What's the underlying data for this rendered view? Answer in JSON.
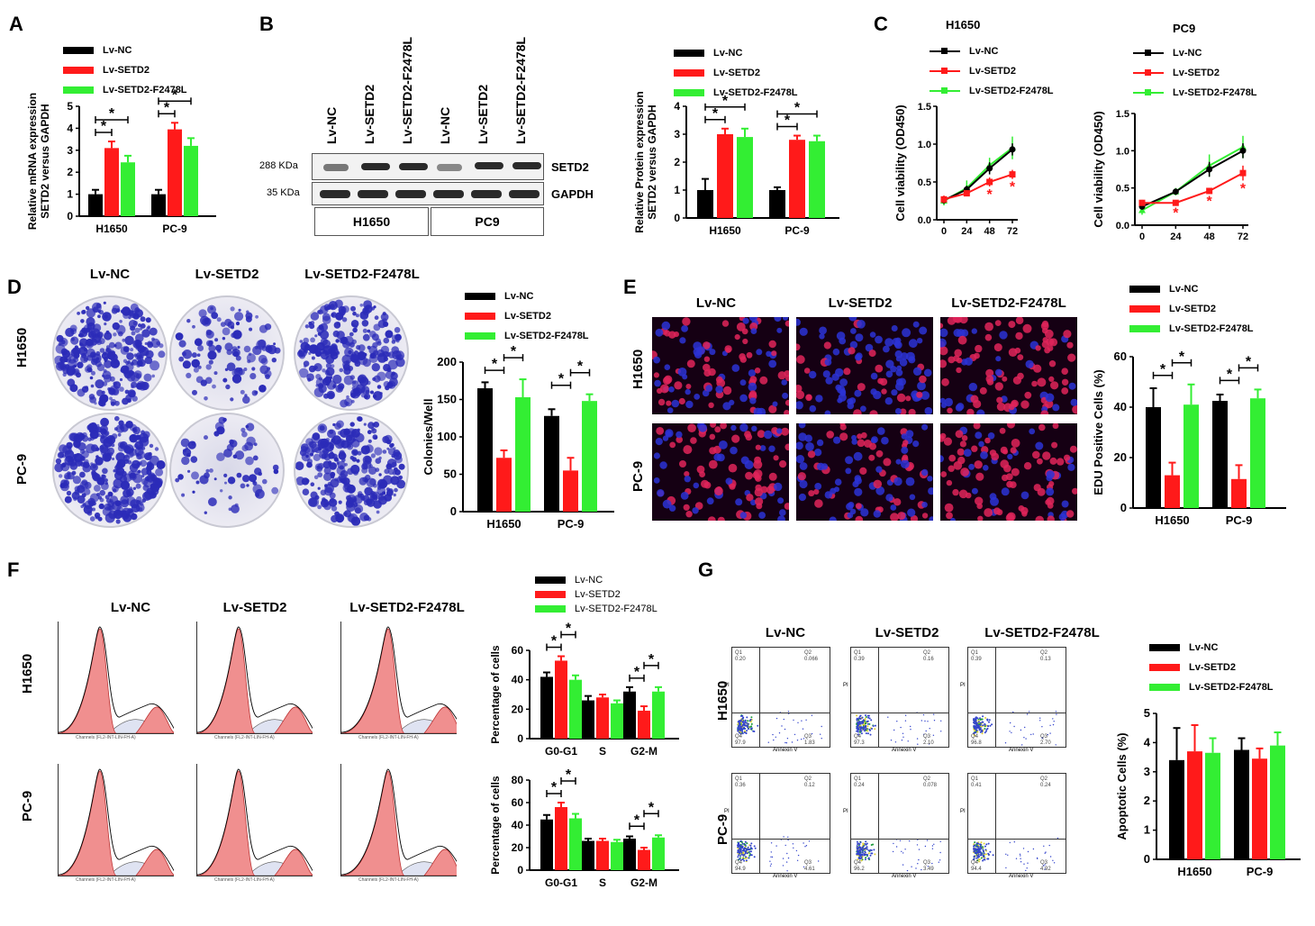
{
  "colors": {
    "black": "#000000",
    "red": "#ff1a1a",
    "green": "#33ee33"
  },
  "legend3": [
    "Lv-NC",
    "Lv-SETD2",
    "Lv-SETD2-F2478L"
  ],
  "panels": {
    "A": "A",
    "B": "B",
    "C": "C",
    "D": "D",
    "E": "E",
    "F": "F",
    "G": "G"
  },
  "cols": {
    "nc": "Lv-NC",
    "setd2": "Lv-SETD2",
    "mut": "Lv-SETD2-F2478L"
  },
  "rows": {
    "h1650": "H1650",
    "pc9": "PC-9"
  },
  "blot": {
    "lanes": [
      "Lv-NC",
      "Lv-SETD2",
      "Lv-SETD2-F2478L",
      "Lv-NC",
      "Lv-SETD2",
      "Lv-SETD2-F2478L"
    ],
    "mw1": "288 KDa",
    "mw2": "35 KDa",
    "p1": "SETD2",
    "p2": "GAPDH",
    "g1": "H1650",
    "g2": "PC9"
  },
  "flow": {
    "xlabel": "Annexin V",
    "ylabel": "PI",
    "q": {
      "h_nc": [
        "Q1",
        "0.20",
        "Q2",
        "0.066",
        "Q4",
        "97.9",
        "Q3",
        "1.83"
      ],
      "h_setd2": [
        "Q1",
        "0.39",
        "Q2",
        "0.16",
        "Q4",
        "97.3",
        "Q3",
        "2.10"
      ],
      "h_mut": [
        "Q1",
        "0.39",
        "Q2",
        "0.13",
        "Q4",
        "96.8",
        "Q3",
        "2.70"
      ],
      "p_nc": [
        "Q1",
        "0.36",
        "Q2",
        "0.12",
        "Q4",
        "94.9",
        "Q3",
        "4.61"
      ],
      "p_setd2": [
        "Q1",
        "0.24",
        "Q2",
        "0.078",
        "Q4",
        "96.2",
        "Q3",
        "3.49"
      ],
      "p_mut": [
        "Q1",
        "0.41",
        "Q2",
        "0.24",
        "Q4",
        "94.4",
        "Q3",
        "4.92"
      ]
    }
  },
  "histo": {
    "axis": "Channels (FL2-INT-LIN-FH-A)"
  },
  "chart_data": [
    {
      "id": "A",
      "type": "bar",
      "categories": [
        "H1650",
        "PC-9"
      ],
      "series": [
        {
          "name": "Lv-NC",
          "values": [
            1.0,
            1.0
          ],
          "err": [
            0.2,
            0.2
          ]
        },
        {
          "name": "Lv-SETD2",
          "values": [
            3.1,
            3.95
          ],
          "err": [
            0.3,
            0.3
          ]
        },
        {
          "name": "Lv-SETD2-F2478L",
          "values": [
            2.45,
            3.2
          ],
          "err": [
            0.3,
            0.35
          ]
        }
      ],
      "ylabel": "Relative mRNA expression\nSETD2 versus GAPDH",
      "ylim": [
        0,
        5
      ],
      "yticks": [
        0,
        1,
        2,
        3,
        4,
        5
      ],
      "sig": [
        {
          "c": 0,
          "a": 0,
          "b": 1,
          "lvl": 0
        },
        {
          "c": 0,
          "a": 0,
          "b": 2,
          "lvl": 1
        },
        {
          "c": 1,
          "a": 0,
          "b": 1,
          "lvl": 0
        },
        {
          "c": 1,
          "a": 0,
          "b": 2,
          "lvl": 1
        }
      ]
    },
    {
      "id": "B",
      "type": "bar",
      "categories": [
        "H1650",
        "PC-9"
      ],
      "series": [
        {
          "name": "Lv-NC",
          "values": [
            1.0,
            1.0
          ],
          "err": [
            0.4,
            0.1
          ]
        },
        {
          "name": "Lv-SETD2",
          "values": [
            3.0,
            2.8
          ],
          "err": [
            0.2,
            0.15
          ]
        },
        {
          "name": "Lv-SETD2-F2478L",
          "values": [
            2.9,
            2.75
          ],
          "err": [
            0.3,
            0.2
          ]
        }
      ],
      "ylabel": "Relative Protein expression\nSETD2 versus GAPDH",
      "ylim": [
        0,
        4
      ],
      "yticks": [
        0,
        1,
        2,
        3,
        4
      ],
      "sig": [
        {
          "c": 0,
          "a": 0,
          "b": 1,
          "lvl": 0
        },
        {
          "c": 0,
          "a": 0,
          "b": 2,
          "lvl": 1
        },
        {
          "c": 1,
          "a": 0,
          "b": 1,
          "lvl": 0
        },
        {
          "c": 1,
          "a": 0,
          "b": 2,
          "lvl": 1
        }
      ]
    },
    {
      "id": "C1",
      "type": "line",
      "title": "H1650",
      "x": [
        0,
        24,
        48,
        72
      ],
      "series": [
        {
          "name": "Lv-NC",
          "values": [
            0.26,
            0.4,
            0.68,
            0.93
          ],
          "err": [
            0.05,
            0.05,
            0.08,
            0.08
          ]
        },
        {
          "name": "Lv-SETD2",
          "values": [
            0.27,
            0.35,
            0.5,
            0.6
          ],
          "err": [
            0.05,
            0.04,
            0.06,
            0.06
          ]
        },
        {
          "name": "Lv-SETD2-F2478L",
          "values": [
            0.25,
            0.42,
            0.72,
            0.95
          ],
          "err": [
            0.06,
            0.1,
            0.1,
            0.15
          ]
        }
      ],
      "ylabel": "Cell viability (OD450)",
      "ylim": [
        0,
        1.5
      ],
      "yticks": [
        0.0,
        0.5,
        1.0,
        1.5
      ],
      "stars": [
        2,
        3
      ]
    },
    {
      "id": "C2",
      "type": "line",
      "title": "PC9",
      "x": [
        0,
        24,
        48,
        72
      ],
      "series": [
        {
          "name": "Lv-NC",
          "values": [
            0.25,
            0.45,
            0.75,
            1.0
          ],
          "err": [
            0.04,
            0.03,
            0.1,
            0.1
          ]
        },
        {
          "name": "Lv-SETD2",
          "values": [
            0.3,
            0.3,
            0.46,
            0.7
          ],
          "err": [
            0.04,
            0.03,
            0.03,
            0.1
          ]
        },
        {
          "name": "Lv-SETD2-F2478L",
          "values": [
            0.2,
            0.45,
            0.8,
            1.05
          ],
          "err": [
            0.06,
            0.05,
            0.15,
            0.15
          ]
        }
      ],
      "ylabel": "Cell viability (OD450)",
      "ylim": [
        0,
        1.5
      ],
      "yticks": [
        0.0,
        0.5,
        1.0,
        1.5
      ],
      "stars": [
        1,
        2,
        3
      ]
    },
    {
      "id": "D",
      "type": "bar",
      "categories": [
        "H1650",
        "PC-9"
      ],
      "series": [
        {
          "name": "Lv-NC",
          "values": [
            165,
            128
          ],
          "err": [
            8,
            9
          ]
        },
        {
          "name": "Lv-SETD2",
          "values": [
            72,
            55
          ],
          "err": [
            10,
            17
          ]
        },
        {
          "name": "Lv-SETD2-F2478L",
          "values": [
            153,
            148
          ],
          "err": [
            24,
            9
          ]
        }
      ],
      "ylabel": "Colonies/Well",
      "ylim": [
        0,
        200
      ],
      "yticks": [
        0,
        50,
        100,
        150,
        200
      ],
      "sig": [
        {
          "c": 0,
          "a": 0,
          "b": 1,
          "lvl": 0
        },
        {
          "c": 0,
          "a": 1,
          "b": 2,
          "lvl": 1
        },
        {
          "c": 1,
          "a": 0,
          "b": 1,
          "lvl": 0
        },
        {
          "c": 1,
          "a": 1,
          "b": 2,
          "lvl": 1
        }
      ]
    },
    {
      "id": "E",
      "type": "bar",
      "categories": [
        "H1650",
        "PC-9"
      ],
      "series": [
        {
          "name": "Lv-NC",
          "values": [
            40,
            42.5
          ],
          "err": [
            7.5,
            2.5
          ]
        },
        {
          "name": "Lv-SETD2",
          "values": [
            13,
            11.5
          ],
          "err": [
            5,
            5.5
          ]
        },
        {
          "name": "Lv-SETD2-F2478L",
          "values": [
            41,
            43.5
          ],
          "err": [
            8,
            3.5
          ]
        }
      ],
      "ylabel": "EDU Positive Cells (%)",
      "ylim": [
        0,
        60
      ],
      "yticks": [
        0,
        20,
        40,
        60
      ],
      "sig": [
        {
          "c": 0,
          "a": 0,
          "b": 1,
          "lvl": 0
        },
        {
          "c": 0,
          "a": 1,
          "b": 2,
          "lvl": 1
        },
        {
          "c": 1,
          "a": 0,
          "b": 1,
          "lvl": 0
        },
        {
          "c": 1,
          "a": 1,
          "b": 2,
          "lvl": 1
        }
      ]
    },
    {
      "id": "F1",
      "type": "bar",
      "categories": [
        "G0-G1",
        "S",
        "G2-M"
      ],
      "series": [
        {
          "name": "Lv-NC",
          "values": [
            42,
            26,
            32
          ],
          "err": [
            3,
            3,
            3
          ]
        },
        {
          "name": "Lv-SETD2",
          "values": [
            53,
            28,
            19
          ],
          "err": [
            3,
            2,
            3
          ]
        },
        {
          "name": "Lv-SETD2-F2478L",
          "values": [
            40,
            24,
            32
          ],
          "err": [
            3,
            2,
            3
          ]
        }
      ],
      "ylabel": "Percentage of cells",
      "ylim": [
        0,
        60
      ],
      "yticks": [
        0,
        20,
        40,
        60
      ],
      "sig": [
        {
          "c": 0,
          "a": 0,
          "b": 1,
          "lvl": 0
        },
        {
          "c": 0,
          "a": 1,
          "b": 2,
          "lvl": 1
        },
        {
          "c": 2,
          "a": 0,
          "b": 1,
          "lvl": 0
        },
        {
          "c": 2,
          "a": 1,
          "b": 2,
          "lvl": 1
        }
      ]
    },
    {
      "id": "F2",
      "type": "bar",
      "categories": [
        "G0-G1",
        "S",
        "G2-M"
      ],
      "series": [
        {
          "name": "Lv-NC",
          "values": [
            45,
            26,
            28
          ],
          "err": [
            4,
            2,
            2
          ]
        },
        {
          "name": "Lv-SETD2",
          "values": [
            56,
            26,
            18
          ],
          "err": [
            4,
            2,
            2
          ]
        },
        {
          "name": "Lv-SETD2-F2478L",
          "values": [
            46,
            25,
            29
          ],
          "err": [
            4,
            2,
            2
          ]
        }
      ],
      "ylabel": "Percentage of cells",
      "ylim": [
        0,
        80
      ],
      "yticks": [
        0,
        20,
        40,
        60,
        80
      ],
      "sig": [
        {
          "c": 0,
          "a": 0,
          "b": 1,
          "lvl": 0
        },
        {
          "c": 0,
          "a": 1,
          "b": 2,
          "lvl": 1
        },
        {
          "c": 2,
          "a": 0,
          "b": 1,
          "lvl": 0
        },
        {
          "c": 2,
          "a": 1,
          "b": 2,
          "lvl": 1
        }
      ]
    },
    {
      "id": "G",
      "type": "bar",
      "categories": [
        "H1650",
        "PC-9"
      ],
      "series": [
        {
          "name": "Lv-NC",
          "values": [
            3.4,
            3.75
          ],
          "err": [
            1.1,
            0.4
          ]
        },
        {
          "name": "Lv-SETD2",
          "values": [
            3.7,
            3.45
          ],
          "err": [
            0.9,
            0.35
          ]
        },
        {
          "name": "Lv-SETD2-F2478L",
          "values": [
            3.65,
            3.9
          ],
          "err": [
            0.5,
            0.45
          ]
        }
      ],
      "ylabel": "Apoptotic Cells (%)",
      "ylim": [
        0,
        5
      ],
      "yticks": [
        0,
        1,
        2,
        3,
        4,
        5
      ],
      "sig": []
    }
  ]
}
